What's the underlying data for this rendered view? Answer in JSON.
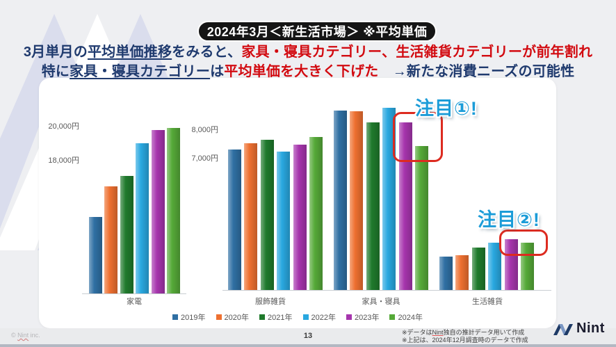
{
  "title_pill": "2024年3月＜新生活市場＞ ※平均単価",
  "headline": {
    "line1": [
      {
        "text": "3月単月の",
        "style": "navy"
      },
      {
        "text": "平均単価推移",
        "style": "navy-underline"
      },
      {
        "text": "をみると、",
        "style": "navy"
      },
      {
        "text": "家具・寝具カテゴリー、生活雑貨カテゴリーが前年割れ",
        "style": "red"
      }
    ],
    "line2": [
      {
        "text": "特に",
        "style": "navy"
      },
      {
        "text": "家具・寝具カテゴリー",
        "style": "navy-underline"
      },
      {
        "text": "は",
        "style": "navy"
      },
      {
        "text": "平均単価を大きく下げた",
        "style": "red"
      },
      {
        "text": "　→新たな消費ニーズの可能性",
        "style": "navy"
      }
    ]
  },
  "annotations": {
    "spot1": "注目①!",
    "spot2": "注目②!"
  },
  "legend": [
    {
      "label": "2019年",
      "color": "#2f6fa3"
    },
    {
      "label": "2020年",
      "color": "#ee7030"
    },
    {
      "label": "2021年",
      "color": "#1f7a2c"
    },
    {
      "label": "2022年",
      "color": "#29a8e0"
    },
    {
      "label": "2023年",
      "color": "#a635ad"
    },
    {
      "label": "2024年",
      "color": "#55a938"
    }
  ],
  "chart_data": [
    {
      "type": "bar",
      "categories": [
        "家電"
      ],
      "series": [
        {
          "name": "2019年",
          "values": [
            14700
          ]
        },
        {
          "name": "2020年",
          "values": [
            16500
          ]
        },
        {
          "name": "2021年",
          "values": [
            17100
          ]
        },
        {
          "name": "2022年",
          "values": [
            19000
          ]
        },
        {
          "name": "2023年",
          "values": [
            19800
          ]
        },
        {
          "name": "2024年",
          "values": [
            19900
          ]
        }
      ],
      "ylim": [
        10200,
        21200
      ],
      "yticks": [
        {
          "value": 20000,
          "label": "20,000円"
        },
        {
          "value": 18000,
          "label": "18,000円"
        }
      ],
      "unit": "円",
      "grid": false,
      "legend_position": "bottom-shared"
    },
    {
      "type": "bar",
      "categories": [
        "服飾雑貨",
        "家具・寝具",
        "生活雑貨"
      ],
      "series": [
        {
          "name": "2019年",
          "values": [
            7320,
            8700,
            3560
          ]
        },
        {
          "name": "2020年",
          "values": [
            7550,
            8660,
            3620
          ]
        },
        {
          "name": "2021年",
          "values": [
            7680,
            8280,
            3880
          ]
        },
        {
          "name": "2022年",
          "values": [
            7250,
            8780,
            4050
          ]
        },
        {
          "name": "2023年",
          "values": [
            7500,
            8290,
            4190
          ]
        },
        {
          "name": "2024年",
          "values": [
            7770,
            7460,
            4070
          ]
        }
      ],
      "ylim": [
        2400,
        9000
      ],
      "yticks": [
        {
          "value": 8000,
          "label": "8,000円"
        },
        {
          "value": 7000,
          "label": "7,000円"
        }
      ],
      "unit": "円",
      "grid": false,
      "legend_position": "bottom-shared"
    }
  ],
  "footer": {
    "copyright_prefix": "© ",
    "copyright_brand": "Nint",
    "copyright_suffix": " inc.",
    "page_number": "13",
    "note1_prefix": "※データは",
    "note1_brand": "Nint",
    "note1_suffix": "独自の推計データ用いて作成",
    "note2": "※上記は、2024年12月調査時のデータで作成",
    "logo_text": "Nint"
  },
  "colors": {
    "headline_navy": "#1f3a6e",
    "headline_red": "#d20a10",
    "spot_blue": "#1b9cd8",
    "highlight_red": "#dd2b20",
    "card_bg": "#ffffff",
    "slide_bg": "#eeeff2"
  }
}
